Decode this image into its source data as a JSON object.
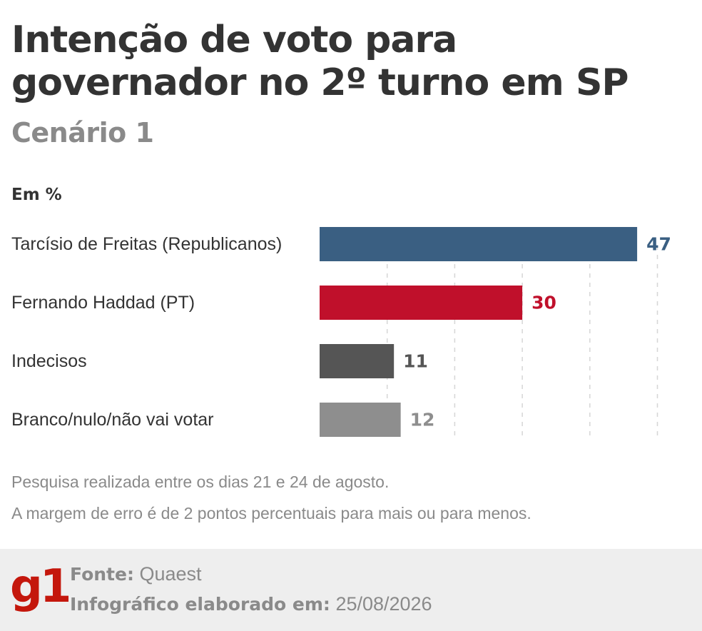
{
  "header": {
    "title": "Intenção de voto para governador no 2º turno em SP",
    "subtitle": "Cenário 1",
    "unit": "Em %"
  },
  "chart_data": {
    "type": "bar",
    "orientation": "horizontal",
    "title": "Intenção de voto para governador no 2º turno em SP",
    "subtitle": "Cenário 1",
    "xlabel": "",
    "ylabel": "",
    "unit": "Em %",
    "categories": [
      "Tarcísio de Freitas (Republicanos)",
      "Fernando Haddad (PT)",
      "Indecisos",
      "Branco/nulo/não vai votar"
    ],
    "values": [
      47,
      30,
      11,
      12
    ],
    "colors": [
      "#3a5f82",
      "#c0102b",
      "#555555",
      "#8e8e8e"
    ],
    "xlim": [
      0,
      50
    ],
    "gridlines": [
      10,
      20,
      30,
      40,
      50
    ],
    "grid": true,
    "legend": "none"
  },
  "notes": [
    "Pesquisa realizada entre os dias 21 e 24 de agosto.",
    "A margem de erro é de 2 pontos percentuais para mais ou para menos."
  ],
  "footer": {
    "logo": "g1",
    "source_label": "Fonte:",
    "source_value": "Quaest",
    "date_label": "Infográfico elaborado em:",
    "date_value": "25/08/2026"
  }
}
